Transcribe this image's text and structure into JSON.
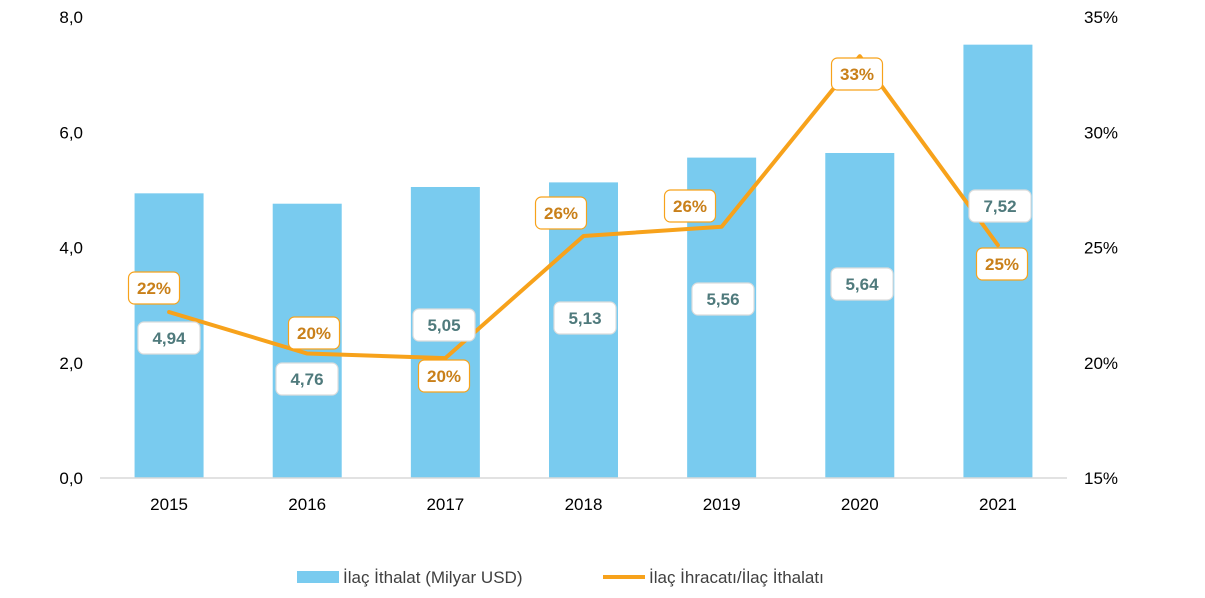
{
  "chart_data": {
    "type": "bar",
    "categories": [
      "2015",
      "2016",
      "2017",
      "2018",
      "2019",
      "2020",
      "2021"
    ],
    "series": [
      {
        "name": "İlaç İthalat (Milyar USD)",
        "type": "bar",
        "axis": "left",
        "values": [
          4.94,
          4.76,
          5.05,
          5.13,
          5.56,
          5.64,
          7.52
        ],
        "labels": [
          "4,94",
          "4,76",
          "5,05",
          "5,13",
          "5,56",
          "5,64",
          "7,52"
        ],
        "color": "#79CBEF"
      },
      {
        "name": "İlaç İhracatı/İlaç İthalatı",
        "type": "line",
        "axis": "right",
        "values": [
          22.2,
          20.4,
          20.2,
          25.5,
          25.9,
          33.3,
          25.1
        ],
        "labels": [
          "22%",
          "20%",
          "20%",
          "26%",
          "26%",
          "33%",
          "25%"
        ],
        "color": "#F7A21B"
      }
    ],
    "y_left": {
      "ylim": [
        0,
        8
      ],
      "ticks": [
        "0,0",
        "2,0",
        "4,0",
        "6,0",
        "8,0"
      ]
    },
    "y_right": {
      "ylim": [
        15,
        35
      ],
      "ticks": [
        "15%",
        "20%",
        "25%",
        "30%",
        "35%"
      ]
    },
    "grid": false,
    "legend_position": "bottom"
  }
}
